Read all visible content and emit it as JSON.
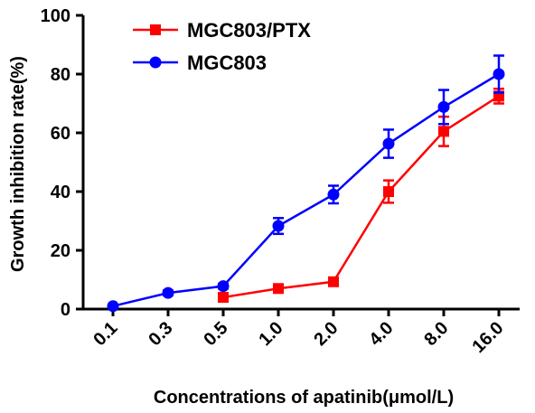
{
  "chart_data": {
    "type": "line",
    "title": "",
    "xlabel": "Concentrations of apatinib(μmol/L)",
    "ylabel": "Growth inhibition rate(%)",
    "categories": [
      "0.1",
      "0.3",
      "0.5",
      "1.0",
      "2.0",
      "4.0",
      "8.0",
      "16.0"
    ],
    "ylim": [
      0,
      100
    ],
    "yticks": [
      "0",
      "20",
      "40",
      "60",
      "80",
      "100"
    ],
    "grid": false,
    "legend_position": "top-left",
    "series": [
      {
        "name": "MGC803/PTX",
        "color": "#ff0000",
        "marker": "square",
        "values": [
          null,
          null,
          4.0,
          7.0,
          9.3,
          40.0,
          60.5,
          72.5
        ],
        "errors": [
          null,
          null,
          0.8,
          0.8,
          0.8,
          3.8,
          5.0,
          2.5
        ]
      },
      {
        "name": "MGC803",
        "color": "#0000ff",
        "marker": "circle",
        "values": [
          1.0,
          5.5,
          7.8,
          28.3,
          39.0,
          56.3,
          68.8,
          80.0
        ],
        "errors": [
          0.5,
          0.8,
          0.8,
          2.7,
          3.0,
          4.8,
          5.8,
          6.3
        ]
      }
    ]
  }
}
